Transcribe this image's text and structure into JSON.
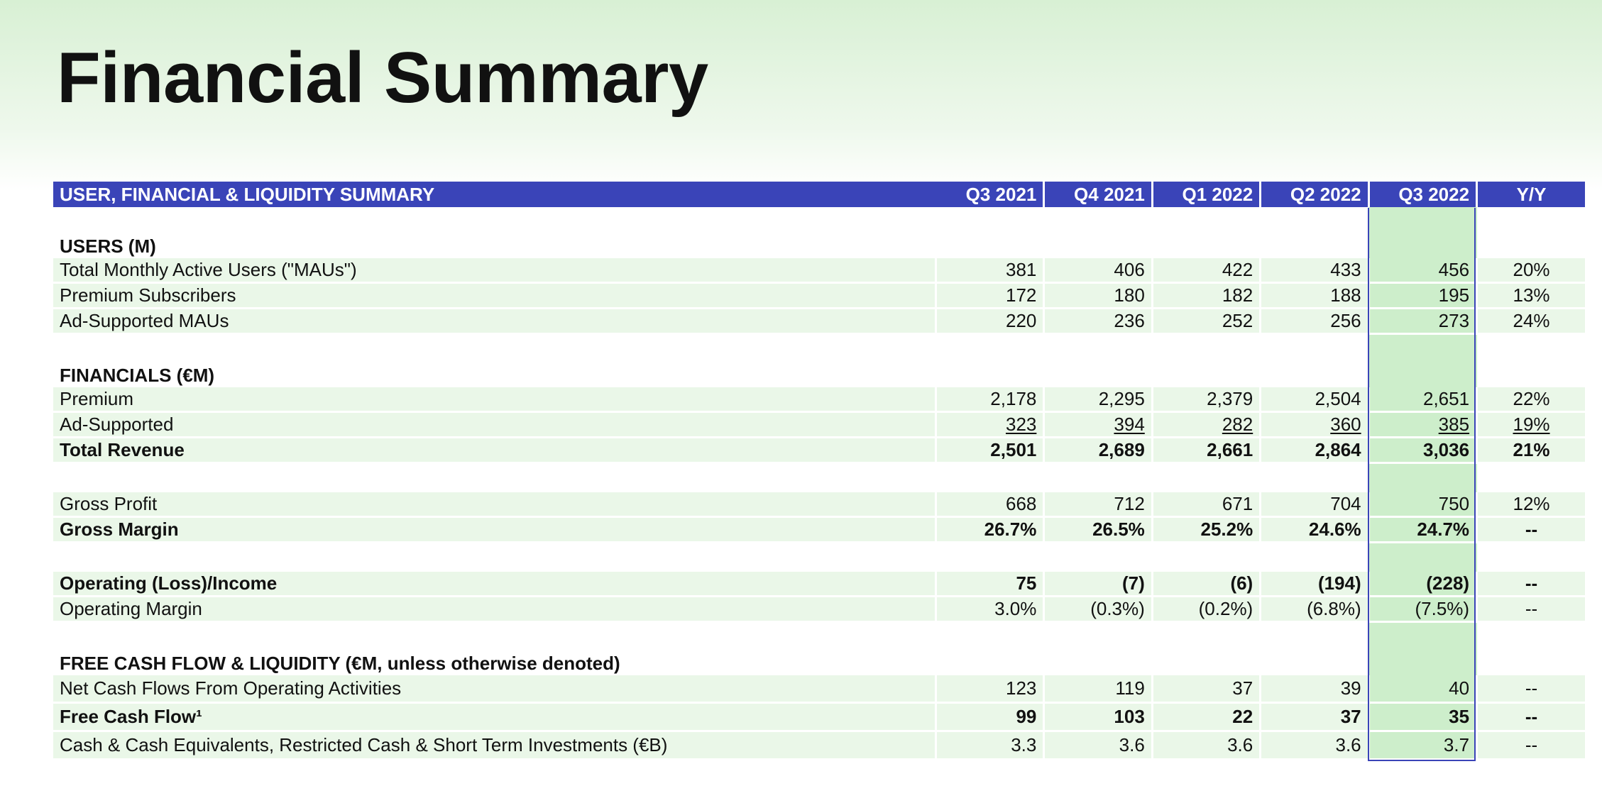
{
  "page": {
    "title": "Financial Summary"
  },
  "table": {
    "header": {
      "label": "USER, FINANCIAL & LIQUIDITY SUMMARY",
      "columns": [
        "Q3 2021",
        "Q4 2021",
        "Q1 2022",
        "Q2 2022",
        "Q3 2022",
        "Y/Y"
      ],
      "highlight_column": "Q3 2022"
    },
    "users": {
      "title": "USERS (M)",
      "rows": [
        {
          "label": "Total Monthly Active Users (\"MAUs\")",
          "values": [
            "381",
            "406",
            "422",
            "433",
            "456"
          ],
          "yy": "20%"
        },
        {
          "label": "Premium Subscribers",
          "values": [
            "172",
            "180",
            "182",
            "188",
            "195"
          ],
          "yy": "13%"
        },
        {
          "label": "Ad-Supported MAUs",
          "values": [
            "220",
            "236",
            "252",
            "256",
            "273"
          ],
          "yy": "24%"
        }
      ]
    },
    "financials": {
      "title": "FINANCIALS (€M)",
      "rows": [
        {
          "label": "Premium",
          "values": [
            "2,178",
            "2,295",
            "2,379",
            "2,504",
            "2,651"
          ],
          "yy": "22%"
        },
        {
          "label": "Ad-Supported",
          "values": [
            "323",
            "394",
            "282",
            "360",
            "385"
          ],
          "yy": "19%"
        },
        {
          "label": "Total Revenue",
          "values": [
            "2,501",
            "2,689",
            "2,661",
            "2,864",
            "3,036"
          ],
          "yy": "21%"
        },
        {
          "label": "Gross Profit",
          "values": [
            "668",
            "712",
            "671",
            "704",
            "750"
          ],
          "yy": "12%"
        },
        {
          "label": "Gross Margin",
          "values": [
            "26.7%",
            "26.5%",
            "25.2%",
            "24.6%",
            "24.7%"
          ],
          "yy": "--"
        },
        {
          "label": "Operating (Loss)/Income",
          "values": [
            "75",
            "(7)",
            "(6)",
            "(194)",
            "(228)"
          ],
          "yy": "--"
        },
        {
          "label": "Operating Margin",
          "values": [
            "3.0%",
            "(0.3%)",
            "(0.2%)",
            "(6.8%)",
            "(7.5%)"
          ],
          "yy": "--"
        }
      ]
    },
    "fcf": {
      "title": "FREE CASH FLOW & LIQUIDITY (€M, unless otherwise denoted)",
      "rows": [
        {
          "label": "Net Cash Flows From Operating Activities",
          "values": [
            "123",
            "119",
            "37",
            "39",
            "40"
          ],
          "yy": "--"
        },
        {
          "label": "Free Cash Flow¹",
          "values": [
            "99",
            "103",
            "22",
            "37",
            "35"
          ],
          "yy": "--"
        },
        {
          "label": "Cash & Cash Equivalents, Restricted Cash & Short Term Investments (€B)",
          "values": [
            "3.3",
            "3.6",
            "3.6",
            "3.6",
            "3.7"
          ],
          "yy": "--"
        }
      ]
    }
  }
}
